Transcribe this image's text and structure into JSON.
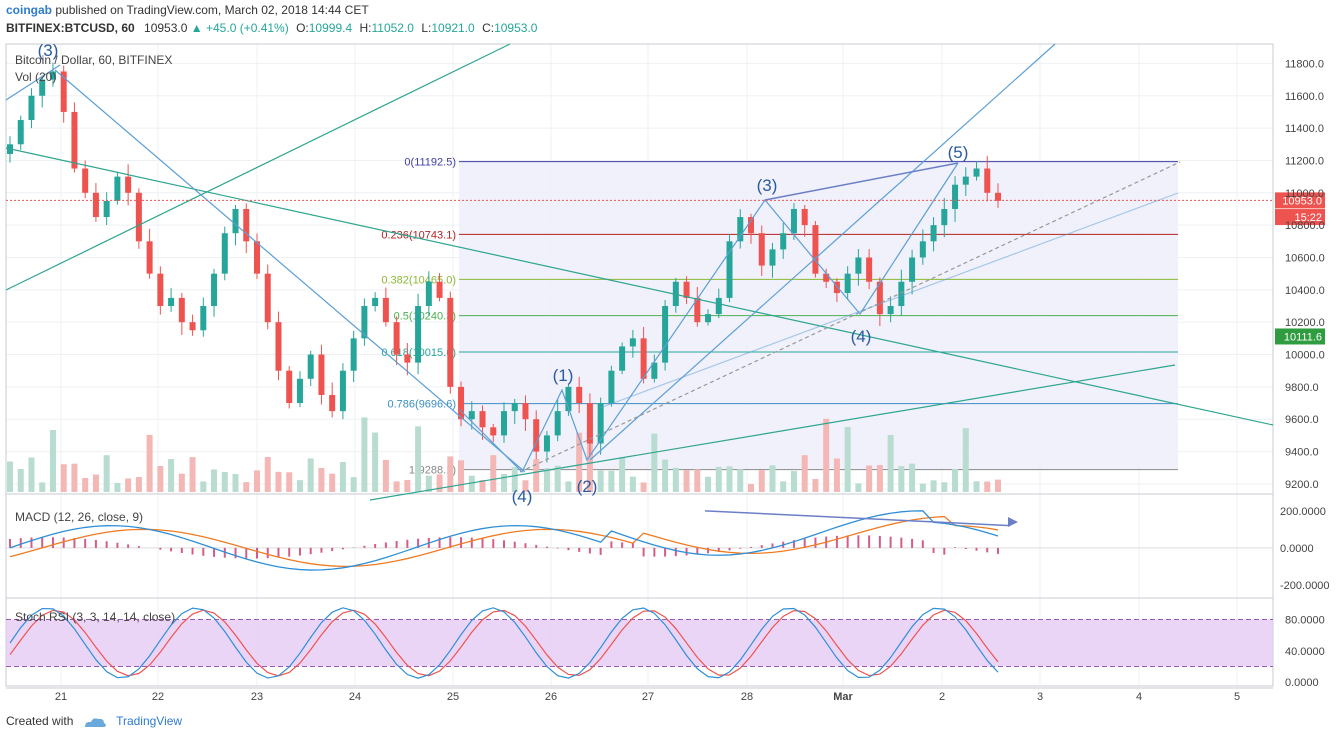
{
  "header": {
    "author": "coingab",
    "published": "published on TradingView.com, March 02, 2018 14:44 CET",
    "symbol": "BITFINEX:BTCUSD, 60",
    "last": "10953.0",
    "change": "+45.0 (+0.41%)",
    "open_label": "O:",
    "open": "10999.4",
    "high_label": "H:",
    "high": "11052.0",
    "low_label": "L:",
    "low": "10921.0",
    "close_label": "C:",
    "close": "10953.0"
  },
  "legend": {
    "series": "Bitcoin / Dollar, 60, BITFINEX",
    "volume": "Vol (20)",
    "macd": "MACD (12, 26, close, 9)",
    "stoch": "Stoch RSI (3, 3, 14, 14, close)"
  },
  "price_axis": {
    "ticks": [
      "11800.0",
      "11600.0",
      "11400.0",
      "11200.0",
      "11000.0",
      "10800.0",
      "10600.0",
      "10400.0",
      "10200.0",
      "10000.0",
      "9800.0",
      "9600.0",
      "9400.0",
      "9200.0"
    ],
    "current_price": "10953.0",
    "countdown": "15:22",
    "green_label": "10111.6"
  },
  "macd_axis": {
    "ticks": [
      "200.0000",
      "0.0000",
      "-200.0000"
    ]
  },
  "stoch_axis": {
    "ticks": [
      "80.0000",
      "40.0000",
      "0.0000"
    ]
  },
  "time_axis": {
    "ticks": [
      "21",
      "22",
      "23",
      "24",
      "25",
      "26",
      "27",
      "28",
      "Mar",
      "2",
      "3",
      "4",
      "5"
    ]
  },
  "fib_levels": [
    {
      "label": "0(11192.5)",
      "price": 11192.5,
      "color": "#3f3fa8"
    },
    {
      "label": "0.236(10743.1)",
      "price": 10743.1,
      "color": "#b22222"
    },
    {
      "label": "0.382(10465.0)",
      "price": 10465.0,
      "color": "#8ab833"
    },
    {
      "label": "0.5(10240.3)",
      "price": 10240.3,
      "color": "#4caf50"
    },
    {
      "label": "0.618(10015.6)",
      "price": 10015.6,
      "color": "#26a69a"
    },
    {
      "label": "0.786(9696.6)",
      "price": 9696.6,
      "color": "#3b8ec2"
    },
    {
      "label": "1(9288.1)",
      "price": 9288.1,
      "color": "#888888"
    }
  ],
  "wave_labels": [
    {
      "text": "(3)"
    },
    {
      "text": "(1)"
    },
    {
      "text": "(4)"
    },
    {
      "text": "(2)"
    },
    {
      "text": "(3)"
    },
    {
      "text": "(4)"
    },
    {
      "text": "(5)"
    }
  ],
  "footer": {
    "created_with": "Created with",
    "brand": "TradingView"
  },
  "colors": {
    "up": "#26a69a",
    "down": "#ef5350",
    "up_candle": "#b8dccf",
    "down_candle": "#f3b7b5",
    "fib_fill": "#eef0fb",
    "stoch_fill": "#e6cbf5",
    "macd_line": "#2e8fd8",
    "signal_line": "#ef7b22",
    "trend_line": "#5c9fd6",
    "teal_line": "#2ea58f"
  },
  "chart_data": {
    "type": "candlestick",
    "title": "Bitcoin / Dollar, 60, BITFINEX",
    "xlabel": "",
    "ylabel": "",
    "ylim": [
      9150,
      11920
    ],
    "close_approx": [
      11300,
      11450,
      11600,
      11700,
      11750,
      11500,
      11150,
      11000,
      10850,
      10950,
      11100,
      11000,
      10700,
      10500,
      10300,
      10350,
      10200,
      10150,
      10300,
      10500,
      10750,
      10900,
      10700,
      10500,
      10200,
      9900,
      9700,
      9850,
      10000,
      9750,
      9650,
      9900,
      10100,
      10300,
      10350,
      10200,
      10000,
      9950,
      10300,
      10450,
      10350,
      9800,
      9600,
      9650,
      9550,
      9500,
      9650,
      9700,
      9600,
      9400,
      9500,
      9650,
      9800,
      9700,
      9450,
      9700,
      9900,
      10050,
      10100,
      9850,
      9950,
      10300,
      10450,
      10350,
      10200,
      10250,
      10350,
      10700,
      10850,
      10750,
      10550,
      10650,
      10750,
      10900,
      10800,
      10500,
      10450,
      10380,
      10500,
      10600,
      10450,
      10250,
      10300,
      10450,
      10600,
      10700,
      10800,
      10900,
      11050,
      11100,
      11150,
      11000,
      10950
    ],
    "macd_ylim": [
      -260,
      280
    ],
    "stoch_ylim": [
      -5,
      105
    ]
  }
}
